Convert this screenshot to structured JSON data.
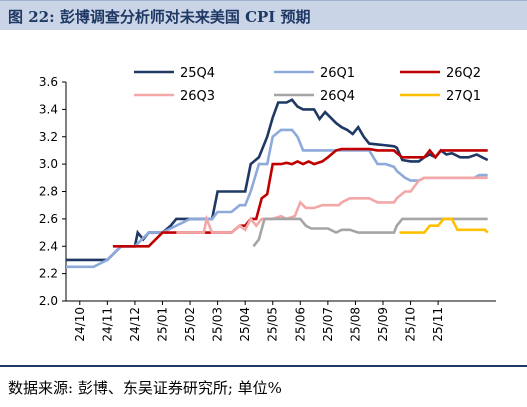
{
  "header": {
    "title": "图 22:  彭博调查分析师对未来美国 CPI 预期"
  },
  "footer": {
    "source": "数据来源:  彭博、东吴证券研究所;  单位%"
  },
  "chart_data": {
    "type": "line",
    "title": "",
    "xlabel": "",
    "ylabel": "",
    "ylim": [
      2.0,
      3.6
    ],
    "yticks": [
      "2.0",
      "2.2",
      "2.4",
      "2.6",
      "2.8",
      "3.0",
      "3.2",
      "3.4",
      "3.6"
    ],
    "xlim": [
      0,
      15.6
    ],
    "xticks": [
      "24/10",
      "24/11",
      "24/12",
      "25/01",
      "25/02",
      "25/03",
      "25/04",
      "25/05",
      "25/06",
      "25/07",
      "25/08",
      "25/09",
      "25/10",
      "25/11"
    ],
    "grid": false,
    "legend": "top",
    "series": [
      {
        "name": "25Q4",
        "color": "#1f3864",
        "points": [
          [
            0,
            2.3
          ],
          [
            1,
            2.3
          ],
          [
            1.5,
            2.3
          ],
          [
            2,
            2.4
          ],
          [
            2.5,
            2.4
          ],
          [
            2.6,
            2.5
          ],
          [
            2.8,
            2.45
          ],
          [
            3,
            2.5
          ],
          [
            3.5,
            2.5
          ],
          [
            3.8,
            2.55
          ],
          [
            4,
            2.6
          ],
          [
            4.5,
            2.6
          ],
          [
            5,
            2.6
          ],
          [
            5.3,
            2.6
          ],
          [
            5.5,
            2.8
          ],
          [
            6,
            2.8
          ],
          [
            6.5,
            2.8
          ],
          [
            6.7,
            3.0
          ],
          [
            7,
            3.05
          ],
          [
            7.3,
            3.2
          ],
          [
            7.5,
            3.34
          ],
          [
            7.7,
            3.45
          ],
          [
            8,
            3.45
          ],
          [
            8.2,
            3.47
          ],
          [
            8.4,
            3.42
          ],
          [
            8.6,
            3.4
          ],
          [
            9,
            3.4
          ],
          [
            9.2,
            3.33
          ],
          [
            9.4,
            3.38
          ],
          [
            9.6,
            3.34
          ],
          [
            9.8,
            3.3
          ],
          [
            10,
            3.27
          ],
          [
            10.2,
            3.25
          ],
          [
            10.4,
            3.22
          ],
          [
            10.6,
            3.27
          ],
          [
            10.8,
            3.2
          ],
          [
            11,
            3.15
          ],
          [
            11.5,
            3.14
          ],
          [
            11.9,
            3.13
          ],
          [
            12,
            3.12
          ],
          [
            12.2,
            3.03
          ],
          [
            12.5,
            3.02
          ],
          [
            12.8,
            3.02
          ],
          [
            13,
            3.05
          ],
          [
            13.2,
            3.07
          ],
          [
            13.4,
            3.05
          ],
          [
            13.6,
            3.1
          ],
          [
            13.8,
            3.07
          ],
          [
            14,
            3.08
          ],
          [
            14.3,
            3.05
          ],
          [
            14.6,
            3.05
          ],
          [
            14.9,
            3.07
          ],
          [
            15.1,
            3.05
          ],
          [
            15.3,
            3.03
          ]
        ]
      },
      {
        "name": "26Q1",
        "color": "#8eaadb",
        "points": [
          [
            0,
            2.25
          ],
          [
            1,
            2.25
          ],
          [
            1.5,
            2.3
          ],
          [
            2,
            2.4
          ],
          [
            2.5,
            2.4
          ],
          [
            3,
            2.5
          ],
          [
            3.5,
            2.5
          ],
          [
            4,
            2.55
          ],
          [
            4.5,
            2.6
          ],
          [
            5,
            2.6
          ],
          [
            5.3,
            2.6
          ],
          [
            5.5,
            2.65
          ],
          [
            6,
            2.65
          ],
          [
            6.3,
            2.7
          ],
          [
            6.5,
            2.7
          ],
          [
            6.7,
            2.8
          ],
          [
            7,
            3.0
          ],
          [
            7.3,
            3.0
          ],
          [
            7.5,
            3.2
          ],
          [
            7.8,
            3.25
          ],
          [
            8.2,
            3.25
          ],
          [
            8.4,
            3.2
          ],
          [
            8.6,
            3.1
          ],
          [
            9,
            3.1
          ],
          [
            9.5,
            3.1
          ],
          [
            10,
            3.1
          ],
          [
            10.5,
            3.1
          ],
          [
            11,
            3.1
          ],
          [
            11.3,
            3.0
          ],
          [
            11.6,
            3.0
          ],
          [
            11.9,
            2.98
          ],
          [
            12,
            2.95
          ],
          [
            12.3,
            2.9
          ],
          [
            12.5,
            2.88
          ],
          [
            12.8,
            2.88
          ],
          [
            13,
            2.9
          ],
          [
            13.5,
            2.9
          ],
          [
            14,
            2.9
          ],
          [
            14.5,
            2.9
          ],
          [
            14.8,
            2.9
          ],
          [
            15,
            2.92
          ],
          [
            15.3,
            2.92
          ]
        ]
      },
      {
        "name": "26Q2",
        "color": "#c00000",
        "points": [
          [
            1.7,
            2.4
          ],
          [
            2,
            2.4
          ],
          [
            2.5,
            2.4
          ],
          [
            3,
            2.4
          ],
          [
            3.5,
            2.5
          ],
          [
            4,
            2.5
          ],
          [
            4.5,
            2.5
          ],
          [
            5,
            2.5
          ],
          [
            5.5,
            2.5
          ],
          [
            6,
            2.5
          ],
          [
            6.3,
            2.55
          ],
          [
            6.5,
            2.55
          ],
          [
            6.7,
            2.6
          ],
          [
            6.9,
            2.6
          ],
          [
            7.1,
            2.75
          ],
          [
            7.3,
            2.78
          ],
          [
            7.5,
            3.0
          ],
          [
            7.8,
            3.0
          ],
          [
            8,
            3.01
          ],
          [
            8.2,
            3.0
          ],
          [
            8.4,
            3.02
          ],
          [
            8.6,
            3.0
          ],
          [
            8.8,
            3.02
          ],
          [
            9,
            3.0
          ],
          [
            9.3,
            3.02
          ],
          [
            9.5,
            3.05
          ],
          [
            9.8,
            3.1
          ],
          [
            10,
            3.11
          ],
          [
            10.5,
            3.11
          ],
          [
            11,
            3.11
          ],
          [
            11.3,
            3.1
          ],
          [
            11.6,
            3.1
          ],
          [
            11.9,
            3.1
          ],
          [
            12,
            3.08
          ],
          [
            12.2,
            3.05
          ],
          [
            12.5,
            3.05
          ],
          [
            12.8,
            3.05
          ],
          [
            13,
            3.05
          ],
          [
            13.2,
            3.1
          ],
          [
            13.4,
            3.05
          ],
          [
            13.6,
            3.1
          ],
          [
            14,
            3.1
          ],
          [
            14.5,
            3.1
          ],
          [
            15,
            3.1
          ],
          [
            15.3,
            3.1
          ]
        ]
      },
      {
        "name": "26Q3",
        "color": "#f4a7a7",
        "points": [
          [
            4,
            2.5
          ],
          [
            4.5,
            2.5
          ],
          [
            5,
            2.5
          ],
          [
            5.1,
            2.6
          ],
          [
            5.3,
            2.5
          ],
          [
            6,
            2.5
          ],
          [
            6.3,
            2.55
          ],
          [
            6.5,
            2.52
          ],
          [
            6.7,
            2.6
          ],
          [
            6.9,
            2.55
          ],
          [
            7.1,
            2.6
          ],
          [
            7.5,
            2.6
          ],
          [
            7.8,
            2.62
          ],
          [
            8,
            2.6
          ],
          [
            8.3,
            2.62
          ],
          [
            8.5,
            2.72
          ],
          [
            8.7,
            2.68
          ],
          [
            9,
            2.68
          ],
          [
            9.3,
            2.7
          ],
          [
            9.6,
            2.7
          ],
          [
            9.9,
            2.7
          ],
          [
            10,
            2.72
          ],
          [
            10.3,
            2.75
          ],
          [
            10.6,
            2.75
          ],
          [
            11,
            2.75
          ],
          [
            11.3,
            2.72
          ],
          [
            11.6,
            2.72
          ],
          [
            11.9,
            2.72
          ],
          [
            12,
            2.75
          ],
          [
            12.3,
            2.8
          ],
          [
            12.5,
            2.8
          ],
          [
            12.8,
            2.88
          ],
          [
            13,
            2.9
          ],
          [
            13.5,
            2.9
          ],
          [
            14,
            2.9
          ],
          [
            14.5,
            2.9
          ],
          [
            15,
            2.9
          ],
          [
            15.3,
            2.9
          ]
        ]
      },
      {
        "name": "26Q4",
        "color": "#a5a5a5",
        "points": [
          [
            6.8,
            2.4
          ],
          [
            7,
            2.45
          ],
          [
            7.2,
            2.6
          ],
          [
            7.5,
            2.6
          ],
          [
            8,
            2.6
          ],
          [
            8.3,
            2.6
          ],
          [
            8.5,
            2.6
          ],
          [
            8.7,
            2.55
          ],
          [
            8.9,
            2.53
          ],
          [
            9.2,
            2.53
          ],
          [
            9.5,
            2.53
          ],
          [
            9.8,
            2.5
          ],
          [
            10,
            2.52
          ],
          [
            10.3,
            2.52
          ],
          [
            10.6,
            2.5
          ],
          [
            11,
            2.5
          ],
          [
            11.3,
            2.5
          ],
          [
            11.6,
            2.5
          ],
          [
            11.9,
            2.5
          ],
          [
            12,
            2.55
          ],
          [
            12.2,
            2.6
          ],
          [
            12.5,
            2.6
          ],
          [
            13,
            2.6
          ],
          [
            13.5,
            2.6
          ],
          [
            14,
            2.6
          ],
          [
            14.5,
            2.6
          ],
          [
            15,
            2.6
          ],
          [
            15.3,
            2.6
          ]
        ]
      },
      {
        "name": "27Q1",
        "color": "#ffc000",
        "points": [
          [
            12.1,
            2.5
          ],
          [
            12.5,
            2.5
          ],
          [
            12.8,
            2.5
          ],
          [
            13,
            2.5
          ],
          [
            13.2,
            2.55
          ],
          [
            13.5,
            2.55
          ],
          [
            13.7,
            2.6
          ],
          [
            14,
            2.6
          ],
          [
            14.2,
            2.52
          ],
          [
            14.5,
            2.52
          ],
          [
            14.8,
            2.52
          ],
          [
            15,
            2.52
          ],
          [
            15.2,
            2.52
          ],
          [
            15.3,
            2.5
          ]
        ]
      }
    ]
  }
}
